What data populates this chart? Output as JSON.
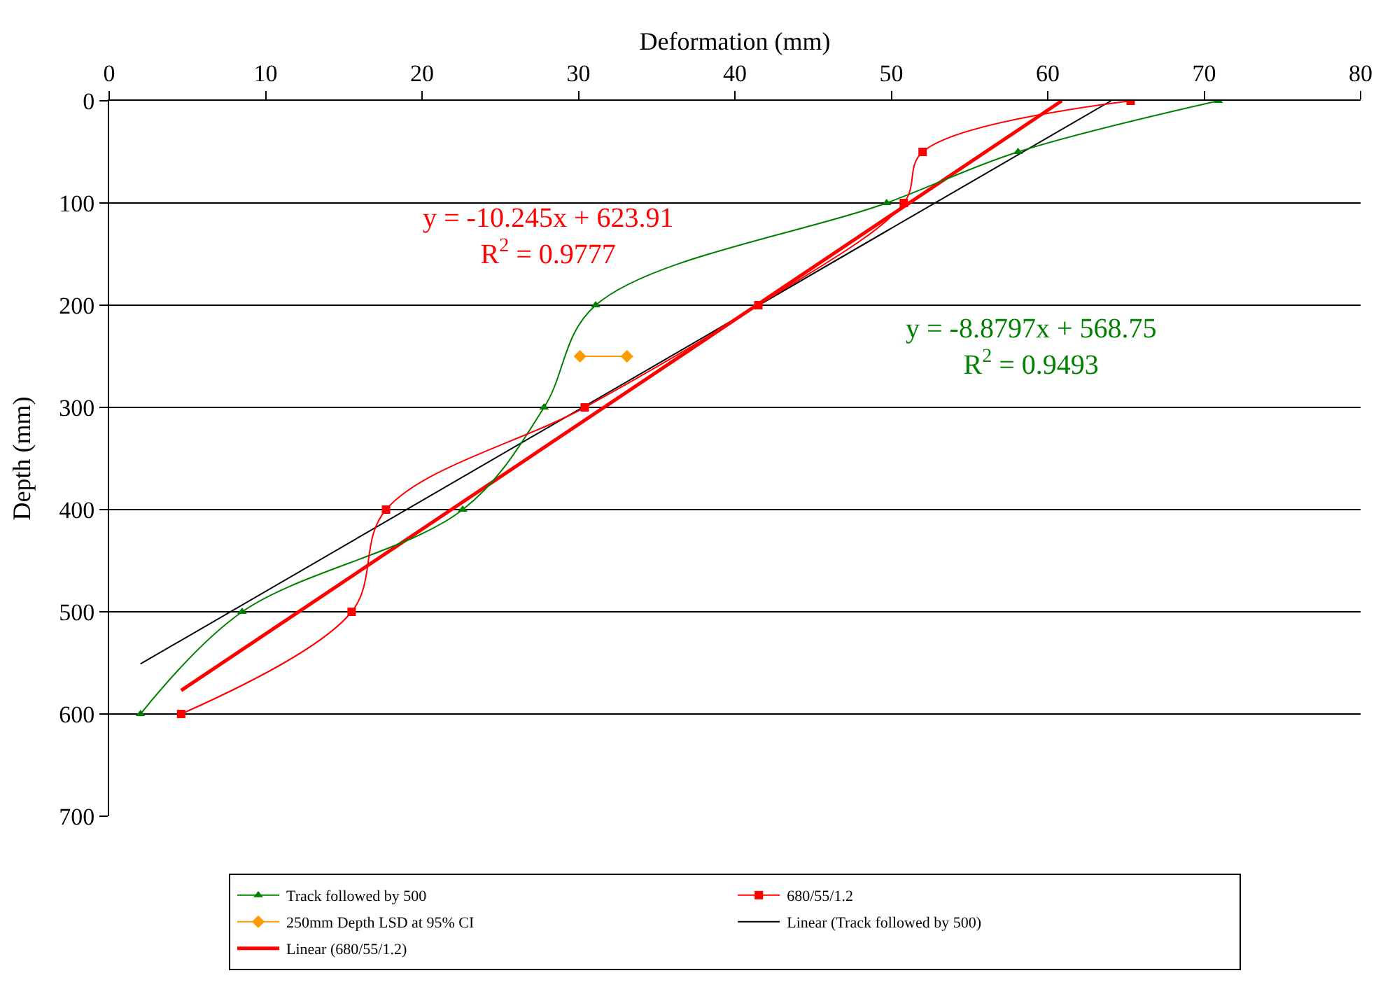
{
  "chart_data": {
    "type": "line",
    "xlabel": "Deformation (mm)",
    "ylabel": "Depth (mm)",
    "xlim": [
      0,
      80
    ],
    "xticks": [
      0,
      10,
      20,
      30,
      40,
      50,
      60,
      70,
      80
    ],
    "ylim": [
      700,
      0
    ],
    "yticks": [
      0,
      100,
      200,
      300,
      400,
      500,
      600,
      700
    ],
    "grid": "y",
    "legend": "bottom",
    "series": [
      {
        "name": "Track followed by 500",
        "color": "#008000",
        "marker": "triangle",
        "x": [
          70.9,
          58.1,
          49.7,
          31.1,
          27.8,
          22.6,
          8.5,
          2.0
        ],
        "values": [
          0,
          50,
          100,
          200,
          300,
          400,
          500,
          600
        ]
      },
      {
        "name": "680/55/1.2",
        "color": "#ff0000",
        "marker": "square",
        "x": [
          65.3,
          52.0,
          50.8,
          41.5,
          30.4,
          17.7,
          15.5,
          4.6
        ],
        "values": [
          0,
          50,
          100,
          200,
          300,
          400,
          500,
          600
        ]
      },
      {
        "name": "250mm Depth LSD at 95% CI",
        "color": "#ff9900",
        "marker": "diamond",
        "x": [
          30.1,
          33.1
        ],
        "values": [
          250,
          250
        ]
      },
      {
        "name": "Linear (Track followed by 500)",
        "color": "#000000",
        "marker": "none",
        "x": [
          2.0,
          64.05
        ],
        "values": [
          551,
          0
        ]
      },
      {
        "name": "Linear (680/55/1.2)",
        "color": "#ff0000",
        "marker": "none",
        "x": [
          4.6,
          60.9
        ],
        "values": [
          577,
          0
        ]
      }
    ],
    "annotations": [
      "y = -10.245x + 623.91\nR$^{2}$ = 0.9777",
      "y = -8.8797x + 568.75\nR$^{2}$ = 0.9493"
    ]
  }
}
